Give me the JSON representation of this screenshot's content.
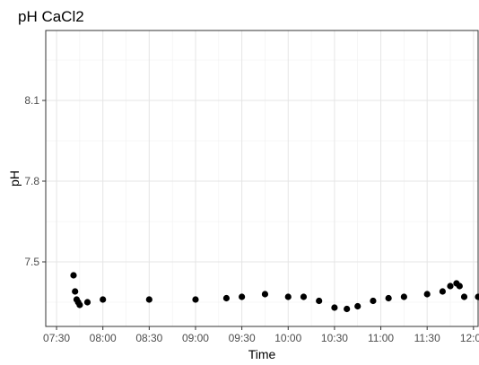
{
  "chart_data": {
    "type": "scatter",
    "title": "pH CaCl2",
    "xlabel": "Time",
    "ylabel": "pH",
    "grid": true,
    "x_domain": [
      "07:23",
      "12:03"
    ],
    "ylim": [
      7.26,
      8.36
    ],
    "x_ticks": [
      "07:30",
      "08:00",
      "08:30",
      "09:00",
      "09:30",
      "10:00",
      "10:30",
      "11:00",
      "11:30",
      "12:00"
    ],
    "y_ticks": [
      "7.5",
      "7.8",
      "8.1"
    ],
    "point_color": "#000000",
    "series": [
      {
        "points": [
          [
            "07:41",
            7.45
          ],
          [
            "07:42",
            7.39
          ],
          [
            "07:43",
            7.36
          ],
          [
            "07:44",
            7.35
          ],
          [
            "07:45",
            7.34
          ],
          [
            "07:50",
            7.35
          ],
          [
            "08:00",
            7.36
          ],
          [
            "08:30",
            7.36
          ],
          [
            "09:00",
            7.36
          ],
          [
            "09:20",
            7.365
          ],
          [
            "09:30",
            7.37
          ],
          [
            "09:45",
            7.38
          ],
          [
            "10:00",
            7.37
          ],
          [
            "10:10",
            7.37
          ],
          [
            "10:20",
            7.355
          ],
          [
            "10:30",
            7.33
          ],
          [
            "10:38",
            7.325
          ],
          [
            "10:45",
            7.335
          ],
          [
            "10:55",
            7.355
          ],
          [
            "11:05",
            7.365
          ],
          [
            "11:15",
            7.37
          ],
          [
            "11:30",
            7.38
          ],
          [
            "11:40",
            7.39
          ],
          [
            "11:45",
            7.41
          ],
          [
            "11:49",
            7.42
          ],
          [
            "11:51",
            7.41
          ],
          [
            "11:54",
            7.37
          ],
          [
            "12:03",
            7.37
          ]
        ]
      }
    ]
  }
}
